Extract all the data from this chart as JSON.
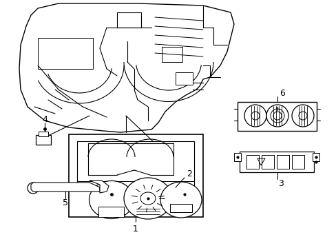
{
  "background_color": "#ffffff",
  "line_color": "#000000",
  "fig_width": 4.89,
  "fig_height": 3.6,
  "dpi": 100,
  "label_fontsize": 9
}
